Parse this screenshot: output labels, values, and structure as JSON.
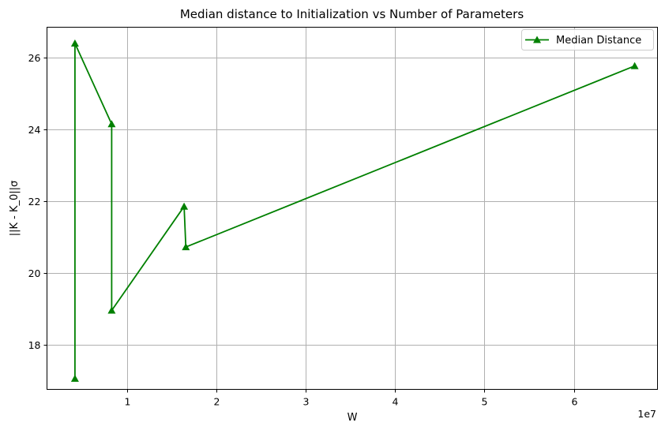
{
  "chart_data": {
    "type": "line",
    "title": "Median distance to Initialization vs Number of Parameters",
    "xlabel": "W",
    "ylabel": "||K - K_0||σ",
    "x_offset_label": "1e7",
    "x_scale": 10000000,
    "xlim": [
      0.107,
      6.935
    ],
    "ylim": [
      16.75,
      26.85
    ],
    "xticks": [
      1,
      2,
      3,
      4,
      5,
      6
    ],
    "xtick_labels": [
      "1",
      "2",
      "3",
      "4",
      "5",
      "6"
    ],
    "yticks": [
      18,
      20,
      22,
      24,
      26
    ],
    "ytick_labels": [
      "18",
      "20",
      "22",
      "24",
      "26"
    ],
    "grid": true,
    "legend_position": "top-right",
    "series": [
      {
        "name": "Median Distance",
        "color": "#008000",
        "marker": "triangle-up",
        "x": [
          0.42,
          0.42,
          0.83,
          0.83,
          1.64,
          1.66,
          6.68
        ],
        "y": [
          17.05,
          26.4,
          24.15,
          18.95,
          21.85,
          20.72,
          25.77
        ]
      }
    ]
  }
}
